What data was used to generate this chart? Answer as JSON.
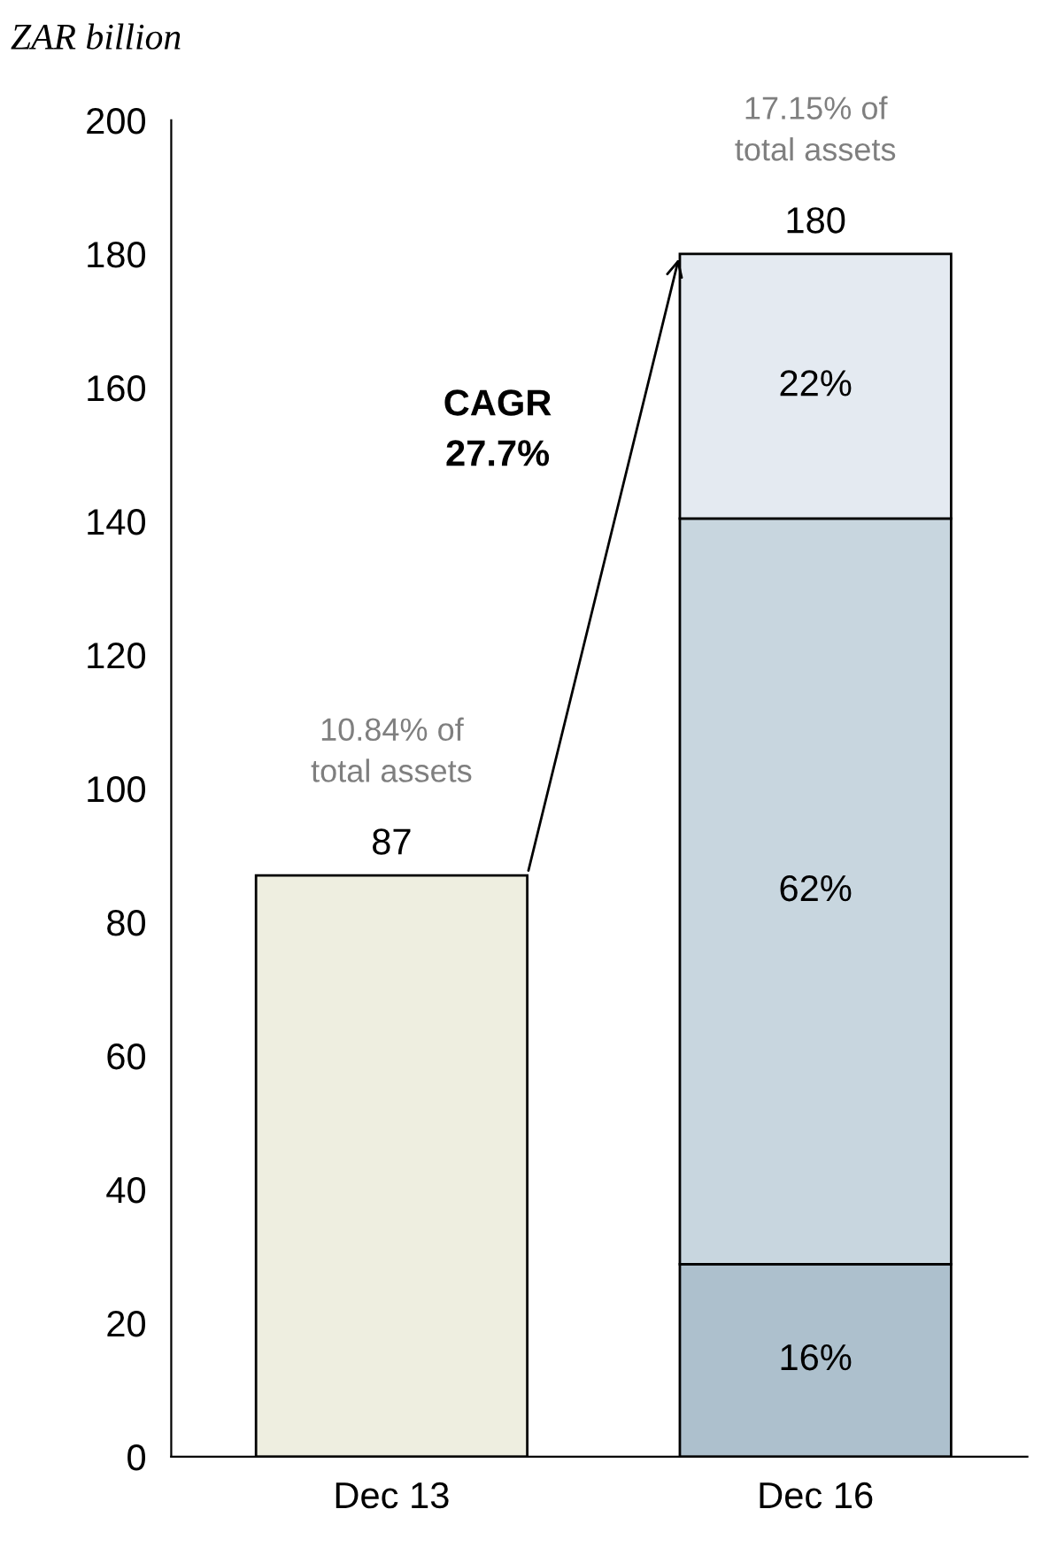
{
  "chart_data": {
    "type": "bar",
    "stacked": true,
    "ylabel": "ZAR billion",
    "categories": [
      "Dec 13",
      "Dec 16"
    ],
    "series": [
      {
        "colors": [
          "#eeeee0",
          "#adc0cd"
        ],
        "values": [
          87,
          28.8
        ]
      },
      {
        "color": "#c8d6df",
        "values": [
          null,
          111.6
        ]
      },
      {
        "color": "#e4eaf1",
        "values": [
          null,
          39.6
        ]
      }
    ],
    "totals": [
      "87",
      "180"
    ],
    "annotations": [
      {
        "text": "10.84% of\ntotal assets",
        "x": "Dec 13",
        "y": 87
      },
      {
        "text": "17.15% of\ntotal assets",
        "x": "Dec 16",
        "y": 180
      },
      "CAGR\n27.7%",
      "16%",
      "62%",
      "22%"
    ],
    "ylim": [
      0,
      200
    ],
    "yticks": [
      0,
      20,
      40,
      60,
      80,
      100,
      120,
      140,
      160,
      180,
      200
    ],
    "grid": false,
    "legend": false
  }
}
